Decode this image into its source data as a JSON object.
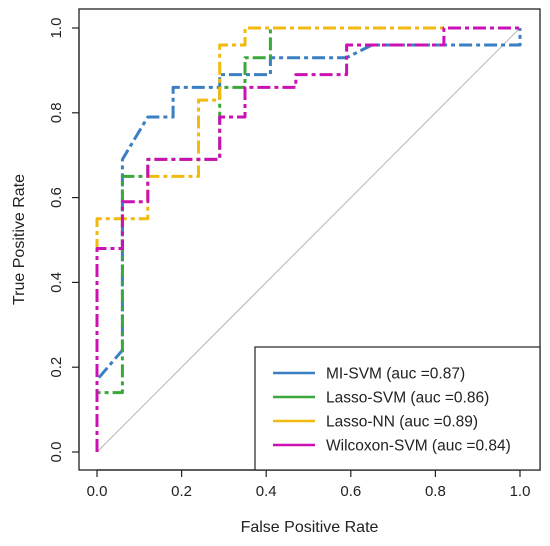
{
  "chart_data": {
    "type": "line",
    "title": "",
    "xlabel": "False Positive Rate",
    "ylabel": "True Positive Rate",
    "xlim": [
      0,
      1
    ],
    "ylim": [
      0,
      1
    ],
    "xticks": [
      "0.0",
      "0.2",
      "0.4",
      "0.6",
      "0.8",
      "1.0"
    ],
    "yticks": [
      "0.0",
      "0.2",
      "0.4",
      "0.6",
      "0.8",
      "1.0"
    ],
    "grid": false,
    "legend_position": "bottom-right",
    "reference_line": "diagonal",
    "series": [
      {
        "name": "MI-SVM (auc =0.87)",
        "color": "#3a7fc1",
        "points": [
          [
            0,
            0
          ],
          [
            0,
            0.17
          ],
          [
            0.06,
            0.24
          ],
          [
            0.06,
            0.69
          ],
          [
            0.12,
            0.79
          ],
          [
            0.18,
            0.79
          ],
          [
            0.18,
            0.86
          ],
          [
            0.29,
            0.86
          ],
          [
            0.29,
            0.89
          ],
          [
            0.41,
            0.89
          ],
          [
            0.41,
            0.93
          ],
          [
            0.59,
            0.93
          ],
          [
            0.65,
            0.96
          ],
          [
            1,
            0.96
          ],
          [
            1,
            1
          ]
        ]
      },
      {
        "name": "Lasso-SVM (auc =0.86)",
        "color": "#3aa83a",
        "points": [
          [
            0,
            0
          ],
          [
            0,
            0.14
          ],
          [
            0.06,
            0.14
          ],
          [
            0.06,
            0.65
          ],
          [
            0.12,
            0.65
          ],
          [
            0.12,
            0.69
          ],
          [
            0.29,
            0.69
          ],
          [
            0.29,
            0.86
          ],
          [
            0.35,
            0.86
          ],
          [
            0.35,
            0.93
          ],
          [
            0.41,
            0.93
          ],
          [
            0.41,
            1
          ],
          [
            1,
            1
          ]
        ]
      },
      {
        "name": "Lasso-NN (auc =0.89)",
        "color": "#f2b90e",
        "points": [
          [
            0,
            0
          ],
          [
            0,
            0.55
          ],
          [
            0.12,
            0.55
          ],
          [
            0.12,
            0.65
          ],
          [
            0.24,
            0.65
          ],
          [
            0.24,
            0.83
          ],
          [
            0.29,
            0.83
          ],
          [
            0.29,
            0.96
          ],
          [
            0.35,
            0.96
          ],
          [
            0.35,
            1
          ],
          [
            1,
            1
          ]
        ]
      },
      {
        "name": "Wilcoxon-SVM (auc =0.84)",
        "color": "#cc10b4",
        "points": [
          [
            0,
            0
          ],
          [
            0,
            0.48
          ],
          [
            0.06,
            0.48
          ],
          [
            0.06,
            0.59
          ],
          [
            0.12,
            0.59
          ],
          [
            0.12,
            0.69
          ],
          [
            0.29,
            0.69
          ],
          [
            0.29,
            0.79
          ],
          [
            0.35,
            0.79
          ],
          [
            0.35,
            0.86
          ],
          [
            0.47,
            0.86
          ],
          [
            0.47,
            0.89
          ],
          [
            0.59,
            0.89
          ],
          [
            0.59,
            0.96
          ],
          [
            0.82,
            0.96
          ],
          [
            0.82,
            1
          ],
          [
            1,
            1
          ]
        ]
      }
    ]
  }
}
